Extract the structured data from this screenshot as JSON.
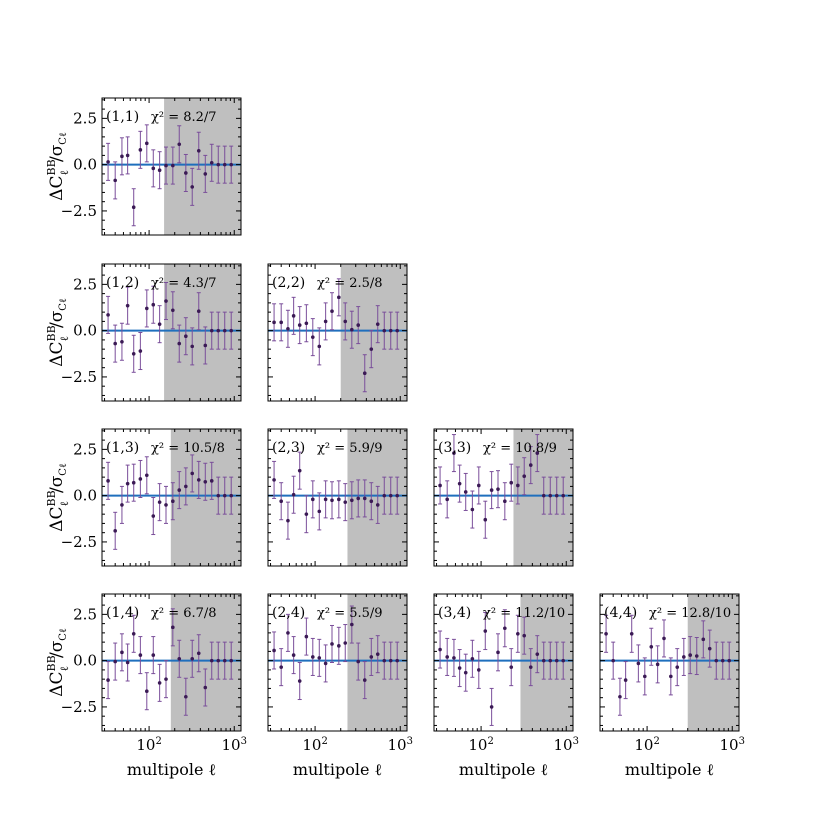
{
  "figure": {
    "xlabel": "multipole ℓ",
    "ylabel_main": "ΔC",
    "ylabel_sup": "BB",
    "ylabel_sub": "ℓ",
    "ylabel_denominator": "/σ",
    "ylabel_denominator_sub": "Cℓ",
    "colors": {
      "points": "#3b1a55",
      "errorbars": "#7a4e9a",
      "zero_line": "#1f6fbd",
      "shade": "#bfbfbf"
    }
  },
  "chart_data": [
    {
      "type": "scatter",
      "pair": "(1,1)",
      "label": "(1,1)",
      "chi2": "χ² = 8.2/7",
      "row": 1,
      "col": 1,
      "ell_cut": 150,
      "xlim": [
        28,
        1200
      ],
      "ylim": [
        -3.8,
        3.6
      ],
      "xlog": true,
      "yticks": [
        2.5,
        0.0,
        -2.5
      ],
      "xticks": [
        100,
        1000
      ],
      "ytick_labels": [
        "2.5",
        "0.0",
        "−2.5"
      ],
      "xtick_labels": [
        "10²",
        "10³"
      ],
      "x": [
        33,
        40,
        48,
        56,
        66,
        79,
        94,
        112,
        133,
        158,
        190,
        226,
        270,
        321,
        383,
        457,
        544,
        649,
        773,
        921
      ],
      "y": [
        0.15,
        -0.85,
        0.45,
        0.5,
        -2.3,
        0.8,
        1.15,
        -0.2,
        -0.3,
        -0.05,
        -0.05,
        1.1,
        -0.45,
        -1.2,
        0.75,
        -0.5,
        0.1,
        0.0,
        0.0,
        0.0
      ],
      "err": [
        1.0,
        1.0,
        1.0,
        1.0,
        1.0,
        1.0,
        1.0,
        1.0,
        1.0,
        1.0,
        1.0,
        1.0,
        1.0,
        1.0,
        1.0,
        1.0,
        1.0,
        1.0,
        1.0,
        1.0
      ]
    },
    {
      "type": "scatter",
      "pair": "(1,2)",
      "label": "(1,2)",
      "chi2": "χ² = 4.3/7",
      "row": 2,
      "col": 1,
      "ell_cut": 150,
      "xlim": [
        28,
        1200
      ],
      "ylim": [
        -3.8,
        3.6
      ],
      "xlog": true,
      "yticks": [
        2.5,
        0.0,
        -2.5
      ],
      "xticks": [
        100,
        1000
      ],
      "ytick_labels": [
        "2.5",
        "0.0",
        "−2.5"
      ],
      "xtick_labels": [
        "10²",
        "10³"
      ],
      "x": [
        33,
        40,
        48,
        56,
        66,
        79,
        94,
        112,
        133,
        158,
        190,
        226,
        270,
        321,
        383,
        457,
        544,
        649,
        773,
        921
      ],
      "y": [
        0.85,
        -0.7,
        -0.6,
        1.35,
        -1.25,
        -1.1,
        1.2,
        1.4,
        0.35,
        1.6,
        1.1,
        -0.7,
        -0.3,
        -0.85,
        1.05,
        -0.8,
        0.0,
        0.0,
        0.0,
        0.0
      ],
      "err": [
        1.0,
        1.0,
        1.0,
        1.0,
        1.0,
        1.0,
        1.0,
        1.0,
        1.0,
        1.0,
        1.0,
        1.0,
        1.0,
        1.0,
        1.0,
        1.0,
        1.0,
        1.0,
        1.0,
        1.0
      ]
    },
    {
      "type": "scatter",
      "pair": "(2,2)",
      "label": "(2,2)",
      "chi2": "χ² = 2.5/8",
      "row": 2,
      "col": 2,
      "ell_cut": 200,
      "xlim": [
        28,
        1200
      ],
      "ylim": [
        -3.8,
        3.6
      ],
      "xlog": true,
      "yticks": [
        2.5,
        0.0,
        -2.5
      ],
      "xticks": [
        100,
        1000
      ],
      "ytick_labels": [
        "2.5",
        "0.0",
        "−2.5"
      ],
      "xtick_labels": [
        "10²",
        "10³"
      ],
      "x": [
        33,
        40,
        48,
        56,
        66,
        79,
        94,
        112,
        133,
        158,
        190,
        226,
        270,
        321,
        383,
        457,
        544,
        649,
        773,
        921
      ],
      "y": [
        0.45,
        0.45,
        0.1,
        0.8,
        0.3,
        0.4,
        -0.35,
        -0.85,
        0.5,
        1.05,
        1.8,
        0.5,
        0.05,
        0.3,
        -2.3,
        -1.0,
        0.35,
        0.0,
        0.0,
        0.0
      ],
      "err": [
        1.0,
        1.0,
        1.0,
        1.0,
        1.0,
        1.0,
        1.0,
        1.0,
        1.0,
        1.0,
        1.0,
        1.0,
        1.0,
        1.0,
        1.0,
        1.0,
        1.0,
        1.0,
        1.0,
        1.0
      ]
    },
    {
      "type": "scatter",
      "pair": "(1,3)",
      "label": "(1,3)",
      "chi2": "χ² = 10.5/8",
      "row": 3,
      "col": 1,
      "ell_cut": 180,
      "xlim": [
        28,
        1200
      ],
      "ylim": [
        -3.8,
        3.6
      ],
      "xlog": true,
      "yticks": [
        2.5,
        0.0,
        -2.5
      ],
      "xticks": [
        100,
        1000
      ],
      "ytick_labels": [
        "2.5",
        "0.0",
        "−2.5"
      ],
      "xtick_labels": [
        "10²",
        "10³"
      ],
      "x": [
        33,
        40,
        48,
        56,
        66,
        79,
        94,
        112,
        133,
        158,
        190,
        226,
        270,
        321,
        383,
        457,
        544,
        649,
        773,
        921
      ],
      "y": [
        0.8,
        -1.9,
        -0.5,
        0.65,
        0.7,
        0.9,
        1.1,
        -1.1,
        -0.35,
        -0.5,
        -0.3,
        0.3,
        0.5,
        1.2,
        0.85,
        0.75,
        0.8,
        0.0,
        0.0,
        0.0
      ],
      "err": [
        1.0,
        1.0,
        1.0,
        1.0,
        1.0,
        1.0,
        1.0,
        1.0,
        1.0,
        1.0,
        1.0,
        1.0,
        1.0,
        1.0,
        1.0,
        1.0,
        1.0,
        1.0,
        1.0,
        1.0
      ]
    },
    {
      "type": "scatter",
      "pair": "(2,3)",
      "label": "(2,3)",
      "chi2": "χ² = 5.9/9",
      "row": 3,
      "col": 2,
      "ell_cut": 240,
      "xlim": [
        28,
        1200
      ],
      "ylim": [
        -3.8,
        3.6
      ],
      "xlog": true,
      "yticks": [
        2.5,
        0.0,
        -2.5
      ],
      "xticks": [
        100,
        1000
      ],
      "ytick_labels": [
        "2.5",
        "0.0",
        "−2.5"
      ],
      "xtick_labels": [
        "10²",
        "10³"
      ],
      "x": [
        33,
        40,
        48,
        56,
        66,
        79,
        94,
        112,
        133,
        158,
        190,
        226,
        270,
        321,
        383,
        457,
        544,
        649,
        773,
        921
      ],
      "y": [
        0.85,
        -0.3,
        -1.35,
        0.05,
        1.35,
        -1.0,
        -0.2,
        -0.85,
        -0.2,
        -0.25,
        -0.2,
        -0.35,
        -0.25,
        -0.15,
        -0.15,
        -0.3,
        -0.5,
        0.0,
        0.0,
        0.0
      ],
      "err": [
        1.0,
        1.0,
        1.0,
        1.0,
        1.0,
        1.0,
        1.0,
        1.0,
        1.0,
        1.0,
        1.0,
        1.0,
        1.0,
        1.0,
        1.0,
        1.0,
        1.0,
        1.0,
        1.0,
        1.0
      ]
    },
    {
      "type": "scatter",
      "pair": "(3,3)",
      "label": "(3,3)",
      "chi2": "χ² = 10.8/9",
      "row": 3,
      "col": 3,
      "ell_cut": 240,
      "xlim": [
        28,
        1200
      ],
      "ylim": [
        -3.8,
        3.6
      ],
      "xlog": true,
      "yticks": [
        2.5,
        0.0,
        -2.5
      ],
      "xticks": [
        100,
        1000
      ],
      "ytick_labels": [
        "2.5",
        "0.0",
        "−2.5"
      ],
      "xtick_labels": [
        "10²",
        "10³"
      ],
      "x": [
        33,
        40,
        48,
        56,
        66,
        79,
        94,
        112,
        133,
        158,
        190,
        226,
        270,
        321,
        383,
        457,
        544,
        649,
        773,
        921
      ],
      "y": [
        0.55,
        -0.2,
        2.3,
        0.65,
        0.2,
        -0.75,
        0.55,
        -1.3,
        0.3,
        0.35,
        -0.3,
        0.7,
        0.55,
        1.05,
        1.65,
        2.3,
        0.0,
        0.0,
        0.0,
        0.0
      ],
      "err": [
        1.0,
        1.0,
        1.0,
        1.0,
        1.0,
        1.0,
        1.0,
        1.0,
        1.0,
        1.0,
        1.0,
        1.0,
        1.0,
        1.0,
        1.0,
        1.0,
        1.0,
        1.0,
        1.0,
        1.0
      ]
    },
    {
      "type": "scatter",
      "pair": "(1,4)",
      "label": "(1,4)",
      "chi2": "χ² = 6.7/8",
      "row": 4,
      "col": 1,
      "ell_cut": 180,
      "xlim": [
        28,
        1200
      ],
      "ylim": [
        -3.8,
        3.6
      ],
      "xlog": true,
      "yticks": [
        2.5,
        0.0,
        -2.5
      ],
      "xticks": [
        100,
        1000
      ],
      "ytick_labels": [
        "2.5",
        "0.0",
        "−2.5"
      ],
      "xtick_labels": [
        "10²",
        "10³"
      ],
      "x": [
        33,
        40,
        48,
        56,
        66,
        79,
        94,
        112,
        133,
        158,
        190,
        226,
        270,
        321,
        383,
        457,
        544,
        649,
        773,
        921
      ],
      "y": [
        -1.05,
        -0.05,
        0.45,
        -0.1,
        1.45,
        0.3,
        -1.65,
        0.3,
        -1.2,
        -1.0,
        1.8,
        0.1,
        -1.95,
        0.1,
        0.4,
        -1.45,
        0.0,
        0.0,
        0.0,
        0.0
      ],
      "err": [
        1.0,
        1.0,
        1.0,
        1.0,
        1.0,
        1.0,
        1.0,
        1.0,
        1.0,
        1.0,
        1.0,
        1.0,
        1.0,
        1.0,
        1.0,
        1.0,
        1.0,
        1.0,
        1.0,
        1.0
      ]
    },
    {
      "type": "scatter",
      "pair": "(2,4)",
      "label": "(2,4)",
      "chi2": "χ² = 5.5/9",
      "row": 4,
      "col": 2,
      "ell_cut": 240,
      "xlim": [
        28,
        1200
      ],
      "ylim": [
        -3.8,
        3.6
      ],
      "xlog": true,
      "yticks": [
        2.5,
        0.0,
        -2.5
      ],
      "xticks": [
        100,
        1000
      ],
      "ytick_labels": [
        "2.5",
        "0.0",
        "−2.5"
      ],
      "xtick_labels": [
        "10²",
        "10³"
      ],
      "x": [
        33,
        40,
        48,
        56,
        66,
        79,
        94,
        112,
        133,
        158,
        190,
        226,
        270,
        321,
        383,
        457,
        544,
        649,
        773,
        921
      ],
      "y": [
        0.55,
        -0.35,
        1.5,
        0.3,
        -1.1,
        1.3,
        0.2,
        0.15,
        -0.15,
        0.9,
        0.8,
        0.95,
        1.95,
        -0.05,
        -1.05,
        0.2,
        0.35,
        0.0,
        0.0,
        0.0
      ],
      "err": [
        1.0,
        1.0,
        1.0,
        1.0,
        1.0,
        1.0,
        1.0,
        1.0,
        1.0,
        1.0,
        1.0,
        1.0,
        1.0,
        1.0,
        1.0,
        1.0,
        1.0,
        1.0,
        1.0,
        1.0
      ]
    },
    {
      "type": "scatter",
      "pair": "(3,4)",
      "label": "(3,4)",
      "chi2": "χ² = 11.2/10",
      "row": 4,
      "col": 3,
      "ell_cut": 290,
      "xlim": [
        28,
        1200
      ],
      "ylim": [
        -3.8,
        3.6
      ],
      "xlog": true,
      "yticks": [
        2.5,
        0.0,
        -2.5
      ],
      "xticks": [
        100,
        1000
      ],
      "ytick_labels": [
        "2.5",
        "0.0",
        "−2.5"
      ],
      "xtick_labels": [
        "10²",
        "10³"
      ],
      "x": [
        33,
        40,
        48,
        56,
        66,
        79,
        94,
        112,
        133,
        158,
        190,
        226,
        270,
        321,
        383,
        457,
        544,
        649,
        773,
        921
      ],
      "y": [
        0.6,
        0.2,
        0.15,
        -0.4,
        -0.65,
        0.1,
        -0.5,
        1.6,
        -2.5,
        0.45,
        1.75,
        -0.35,
        1.45,
        1.35,
        -0.35,
        0.35,
        0.0,
        0.0,
        0.0,
        0.0
      ],
      "err": [
        1.0,
        1.0,
        1.0,
        1.0,
        1.0,
        1.0,
        1.0,
        1.0,
        1.0,
        1.0,
        1.0,
        1.0,
        1.0,
        1.0,
        1.0,
        1.0,
        1.0,
        1.0,
        1.0,
        1.0
      ]
    },
    {
      "type": "scatter",
      "pair": "(4,4)",
      "label": "(4,4)",
      "chi2": "χ² = 12.8/10",
      "row": 4,
      "col": 4,
      "ell_cut": 300,
      "xlim": [
        28,
        1200
      ],
      "ylim": [
        -3.8,
        3.6
      ],
      "xlog": true,
      "yticks": [
        2.5,
        0.0,
        -2.5
      ],
      "xticks": [
        100,
        1000
      ],
      "ytick_labels": [
        "2.5",
        "0.0",
        "−2.5"
      ],
      "xtick_labels": [
        "10²",
        "10³"
      ],
      "x": [
        33,
        40,
        48,
        56,
        66,
        79,
        94,
        112,
        133,
        158,
        190,
        226,
        270,
        321,
        383,
        457,
        544,
        649,
        773,
        921
      ],
      "y": [
        1.45,
        0.0,
        -1.95,
        -1.05,
        1.45,
        -0.15,
        -0.85,
        0.75,
        -0.2,
        1.2,
        -0.85,
        -0.35,
        0.2,
        0.3,
        0.25,
        1.15,
        0.65,
        0.0,
        0.0,
        0.0
      ],
      "err": [
        1.0,
        1.0,
        1.0,
        1.0,
        1.0,
        1.0,
        1.0,
        1.0,
        1.0,
        1.0,
        1.0,
        1.0,
        1.0,
        1.0,
        1.0,
        1.0,
        1.0,
        1.0,
        1.0,
        1.0
      ]
    }
  ]
}
